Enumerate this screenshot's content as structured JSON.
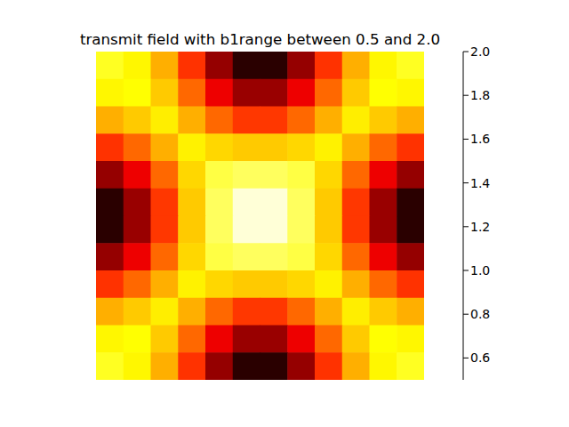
{
  "chart_data": {
    "type": "heatmap",
    "title": "transmit field with b1range between 0.5 and 2.0",
    "tick_labels": false,
    "color": "hot",
    "cells": [
      [
        1.67,
        1.6,
        1.44,
        1.16,
        0.81,
        0.57,
        0.57,
        0.81,
        1.16,
        1.44,
        1.6,
        1.67
      ],
      [
        1.6,
        1.62,
        1.5,
        1.28,
        1.01,
        0.82,
        0.82,
        1.01,
        1.28,
        1.5,
        1.62,
        1.6
      ],
      [
        1.44,
        1.5,
        1.58,
        1.44,
        1.28,
        1.17,
        1.17,
        1.28,
        1.44,
        1.58,
        1.5,
        1.44
      ],
      [
        1.16,
        1.28,
        1.44,
        1.59,
        1.53,
        1.5,
        1.5,
        1.53,
        1.59,
        1.44,
        1.28,
        1.16
      ],
      [
        0.81,
        1.01,
        1.28,
        1.53,
        1.72,
        1.76,
        1.76,
        1.72,
        1.53,
        1.28,
        1.01,
        0.81
      ],
      [
        0.57,
        0.82,
        1.17,
        1.5,
        1.76,
        1.94,
        1.94,
        1.76,
        1.5,
        1.17,
        0.82,
        0.57
      ],
      [
        0.57,
        0.82,
        1.17,
        1.5,
        1.76,
        1.94,
        1.94,
        1.76,
        1.5,
        1.17,
        0.82,
        0.57
      ],
      [
        0.81,
        1.01,
        1.28,
        1.53,
        1.72,
        1.76,
        1.76,
        1.72,
        1.53,
        1.28,
        1.01,
        0.81
      ],
      [
        1.16,
        1.28,
        1.44,
        1.59,
        1.53,
        1.5,
        1.5,
        1.53,
        1.59,
        1.44,
        1.28,
        1.16
      ],
      [
        1.44,
        1.5,
        1.58,
        1.44,
        1.28,
        1.17,
        1.17,
        1.28,
        1.44,
        1.58,
        1.5,
        1.44
      ],
      [
        1.6,
        1.62,
        1.5,
        1.28,
        1.01,
        0.82,
        0.82,
        1.01,
        1.28,
        1.5,
        1.62,
        1.6
      ],
      [
        1.67,
        1.6,
        1.44,
        1.16,
        0.81,
        0.57,
        0.57,
        0.81,
        1.16,
        1.44,
        1.6,
        1.67
      ]
    ],
    "colorbar": {
      "range": [
        0.5,
        2.0
      ],
      "ticks": [
        0.6,
        0.8,
        {
          "value": 1,
          "label": "1.0"
        },
        1.2,
        1.4,
        1.6,
        1.8,
        {
          "value": 2,
          "label": "2.0"
        }
      ]
    }
  }
}
